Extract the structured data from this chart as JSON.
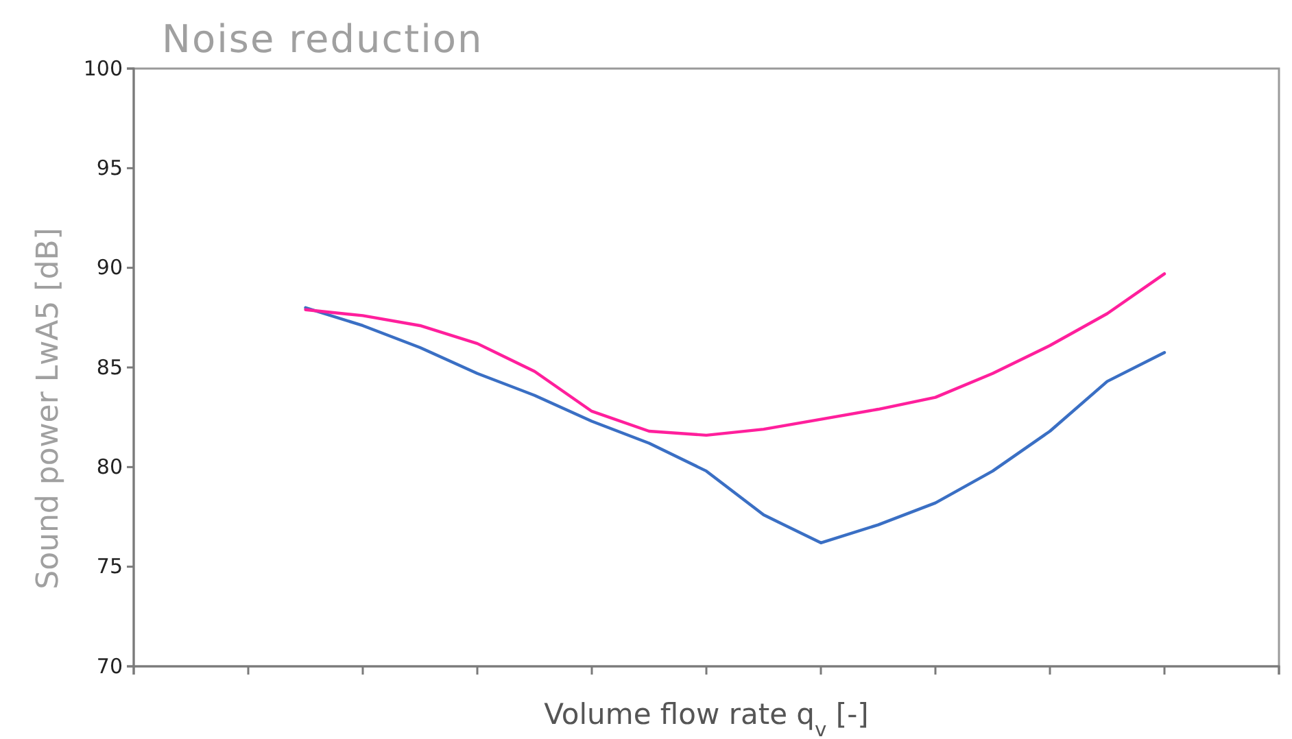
{
  "chart_data": {
    "type": "line",
    "title": "Noise reduction",
    "xlabel": "Volume flow rate q$_{v}$ [-]",
    "ylabel": "Sound power LwA5 [dB]",
    "categories": [
      null,
      null,
      null,
      null,
      null,
      null,
      null,
      null,
      null,
      null,
      null,
      null,
      null,
      null,
      null,
      null,
      null,
      null,
      null,
      null,
      null
    ],
    "ylim": [
      70,
      100
    ],
    "yticks": [
      70,
      75,
      80,
      85,
      90,
      95,
      100
    ],
    "series": [
      {
        "color": "#3a6fc4",
        "values": [
          null,
          null,
          null,
          88.0,
          87.1,
          86.0,
          84.7,
          83.6,
          82.3,
          81.2,
          79.8,
          77.6,
          76.2,
          77.1,
          78.2,
          79.8,
          81.8,
          84.3,
          85.75,
          null,
          null
        ]
      },
      {
        "color": "#ff1f9c",
        "values": [
          null,
          null,
          null,
          87.9,
          87.6,
          87.1,
          86.2,
          84.8,
          82.8,
          81.8,
          81.6,
          81.9,
          82.4,
          82.9,
          83.5,
          84.7,
          86.1,
          87.7,
          89.7,
          null,
          null
        ]
      }
    ]
  }
}
